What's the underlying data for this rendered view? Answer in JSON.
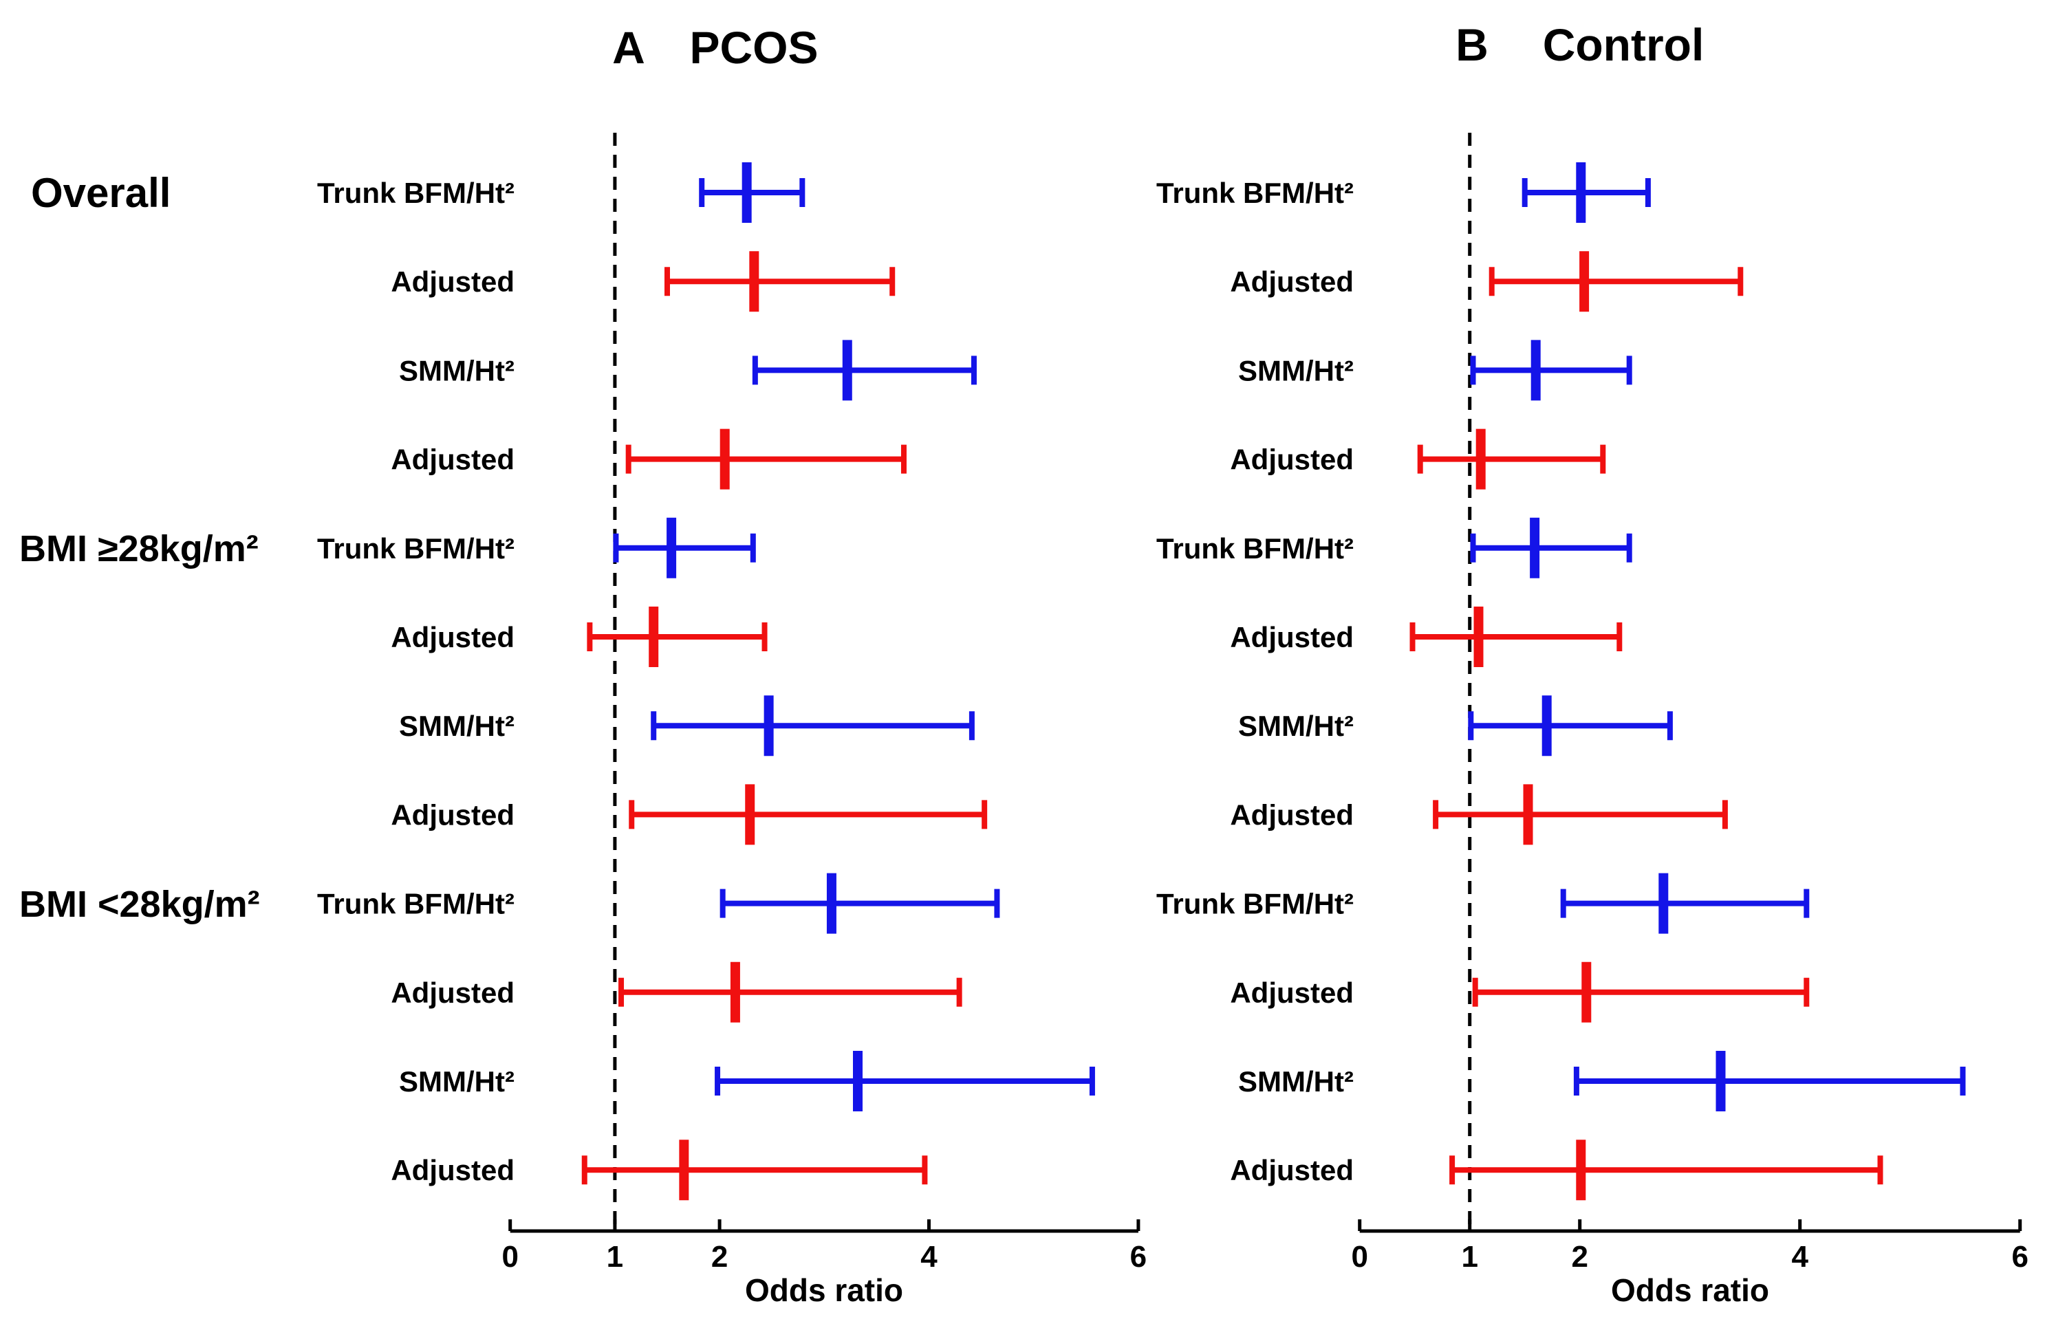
{
  "colors": {
    "unadjusted_blue": "#1414e8",
    "adjusted_red": "#f01010",
    "axis_black": "#000000"
  },
  "chart_data": [
    {
      "type": "scatter",
      "variant": "forest-plot",
      "panel_letter": "A",
      "title": "PCOS",
      "xlabel": "Odds ratio",
      "xlim": [
        0,
        6
      ],
      "xticks": [
        0,
        1,
        2,
        4,
        6
      ],
      "refline_x": 1,
      "grid": false,
      "groups": [
        {
          "label": "Overall"
        },
        {
          "label": "BMI ≥28kg/m²"
        },
        {
          "label": "BMI <28kg/m²"
        }
      ],
      "rows": [
        {
          "group": "Overall",
          "label": "Trunk BFM/Ht²",
          "series": "unadjusted",
          "or": 2.26,
          "ci_low": 1.83,
          "ci_high": 2.79
        },
        {
          "group": "Overall",
          "label": "Adjusted",
          "series": "adjusted",
          "or": 2.33,
          "ci_low": 1.5,
          "ci_high": 3.65
        },
        {
          "group": "Overall",
          "label": "SMM/Ht²",
          "series": "unadjusted",
          "or": 3.22,
          "ci_low": 2.34,
          "ci_high": 4.43
        },
        {
          "group": "Overall",
          "label": "Adjusted",
          "series": "adjusted",
          "or": 2.05,
          "ci_low": 1.13,
          "ci_high": 3.76
        },
        {
          "group": "BMI ≥28kg/m²",
          "label": "Trunk BFM/Ht²",
          "series": "unadjusted",
          "or": 1.54,
          "ci_low": 1.01,
          "ci_high": 2.32
        },
        {
          "group": "BMI ≥28kg/m²",
          "label": "Adjusted",
          "series": "adjusted",
          "or": 1.37,
          "ci_low": 0.76,
          "ci_high": 2.43
        },
        {
          "group": "BMI ≥28kg/m²",
          "label": "SMM/Ht²",
          "series": "unadjusted",
          "or": 2.47,
          "ci_low": 1.37,
          "ci_high": 4.41
        },
        {
          "group": "BMI ≥28kg/m²",
          "label": "Adjusted",
          "series": "adjusted",
          "or": 2.29,
          "ci_low": 1.16,
          "ci_high": 4.53
        },
        {
          "group": "BMI <28kg/m²",
          "label": "Trunk BFM/Ht²",
          "series": "unadjusted",
          "or": 3.07,
          "ci_low": 2.03,
          "ci_high": 4.65
        },
        {
          "group": "BMI <28kg/m²",
          "label": "Adjusted",
          "series": "adjusted",
          "or": 2.15,
          "ci_low": 1.06,
          "ci_high": 4.29
        },
        {
          "group": "BMI <28kg/m²",
          "label": "SMM/Ht²",
          "series": "unadjusted",
          "or": 3.32,
          "ci_low": 1.98,
          "ci_high": 5.56
        },
        {
          "group": "BMI <28kg/m²",
          "label": "Adjusted",
          "series": "adjusted",
          "or": 1.66,
          "ci_low": 0.71,
          "ci_high": 3.96
        }
      ]
    },
    {
      "type": "scatter",
      "variant": "forest-plot",
      "panel_letter": "B",
      "title": "Control",
      "xlabel": "Odds ratio",
      "xlim": [
        0,
        6
      ],
      "xticks": [
        0,
        1,
        2,
        4,
        6
      ],
      "refline_x": 1,
      "grid": false,
      "rows": [
        {
          "group": "Overall",
          "label": "Trunk BFM/Ht²",
          "series": "unadjusted",
          "or": 2.01,
          "ci_low": 1.5,
          "ci_high": 2.62
        },
        {
          "group": "Overall",
          "label": "Adjusted",
          "series": "adjusted",
          "or": 2.04,
          "ci_low": 1.2,
          "ci_high": 3.46
        },
        {
          "group": "Overall",
          "label": "SMM/Ht²",
          "series": "unadjusted",
          "or": 1.6,
          "ci_low": 1.03,
          "ci_high": 2.45
        },
        {
          "group": "Overall",
          "label": "Adjusted",
          "series": "adjusted",
          "or": 1.1,
          "ci_low": 0.55,
          "ci_high": 2.21
        },
        {
          "group": "BMI ≥28kg/m²",
          "label": "Trunk BFM/Ht²",
          "series": "unadjusted",
          "or": 1.59,
          "ci_low": 1.03,
          "ci_high": 2.45
        },
        {
          "group": "BMI ≥28kg/m²",
          "label": "Adjusted",
          "series": "adjusted",
          "or": 1.08,
          "ci_low": 0.48,
          "ci_high": 2.36
        },
        {
          "group": "BMI ≥28kg/m²",
          "label": "SMM/Ht²",
          "series": "unadjusted",
          "or": 1.7,
          "ci_low": 1.01,
          "ci_high": 2.82
        },
        {
          "group": "BMI ≥28kg/m²",
          "label": "Adjusted",
          "series": "adjusted",
          "or": 1.53,
          "ci_low": 0.69,
          "ci_high": 3.32
        },
        {
          "group": "BMI <28kg/m²",
          "label": "Trunk BFM/Ht²",
          "series": "unadjusted",
          "or": 2.76,
          "ci_low": 1.85,
          "ci_high": 4.06
        },
        {
          "group": "BMI <28kg/m²",
          "label": "Adjusted",
          "series": "adjusted",
          "or": 2.06,
          "ci_low": 1.05,
          "ci_high": 4.06
        },
        {
          "group": "BMI <28kg/m²",
          "label": "SMM/Ht²",
          "series": "unadjusted",
          "or": 3.28,
          "ci_low": 1.97,
          "ci_high": 5.48
        },
        {
          "group": "BMI <28kg/m²",
          "label": "Adjusted",
          "series": "adjusted",
          "or": 2.01,
          "ci_low": 0.84,
          "ci_high": 4.73
        }
      ]
    }
  ]
}
